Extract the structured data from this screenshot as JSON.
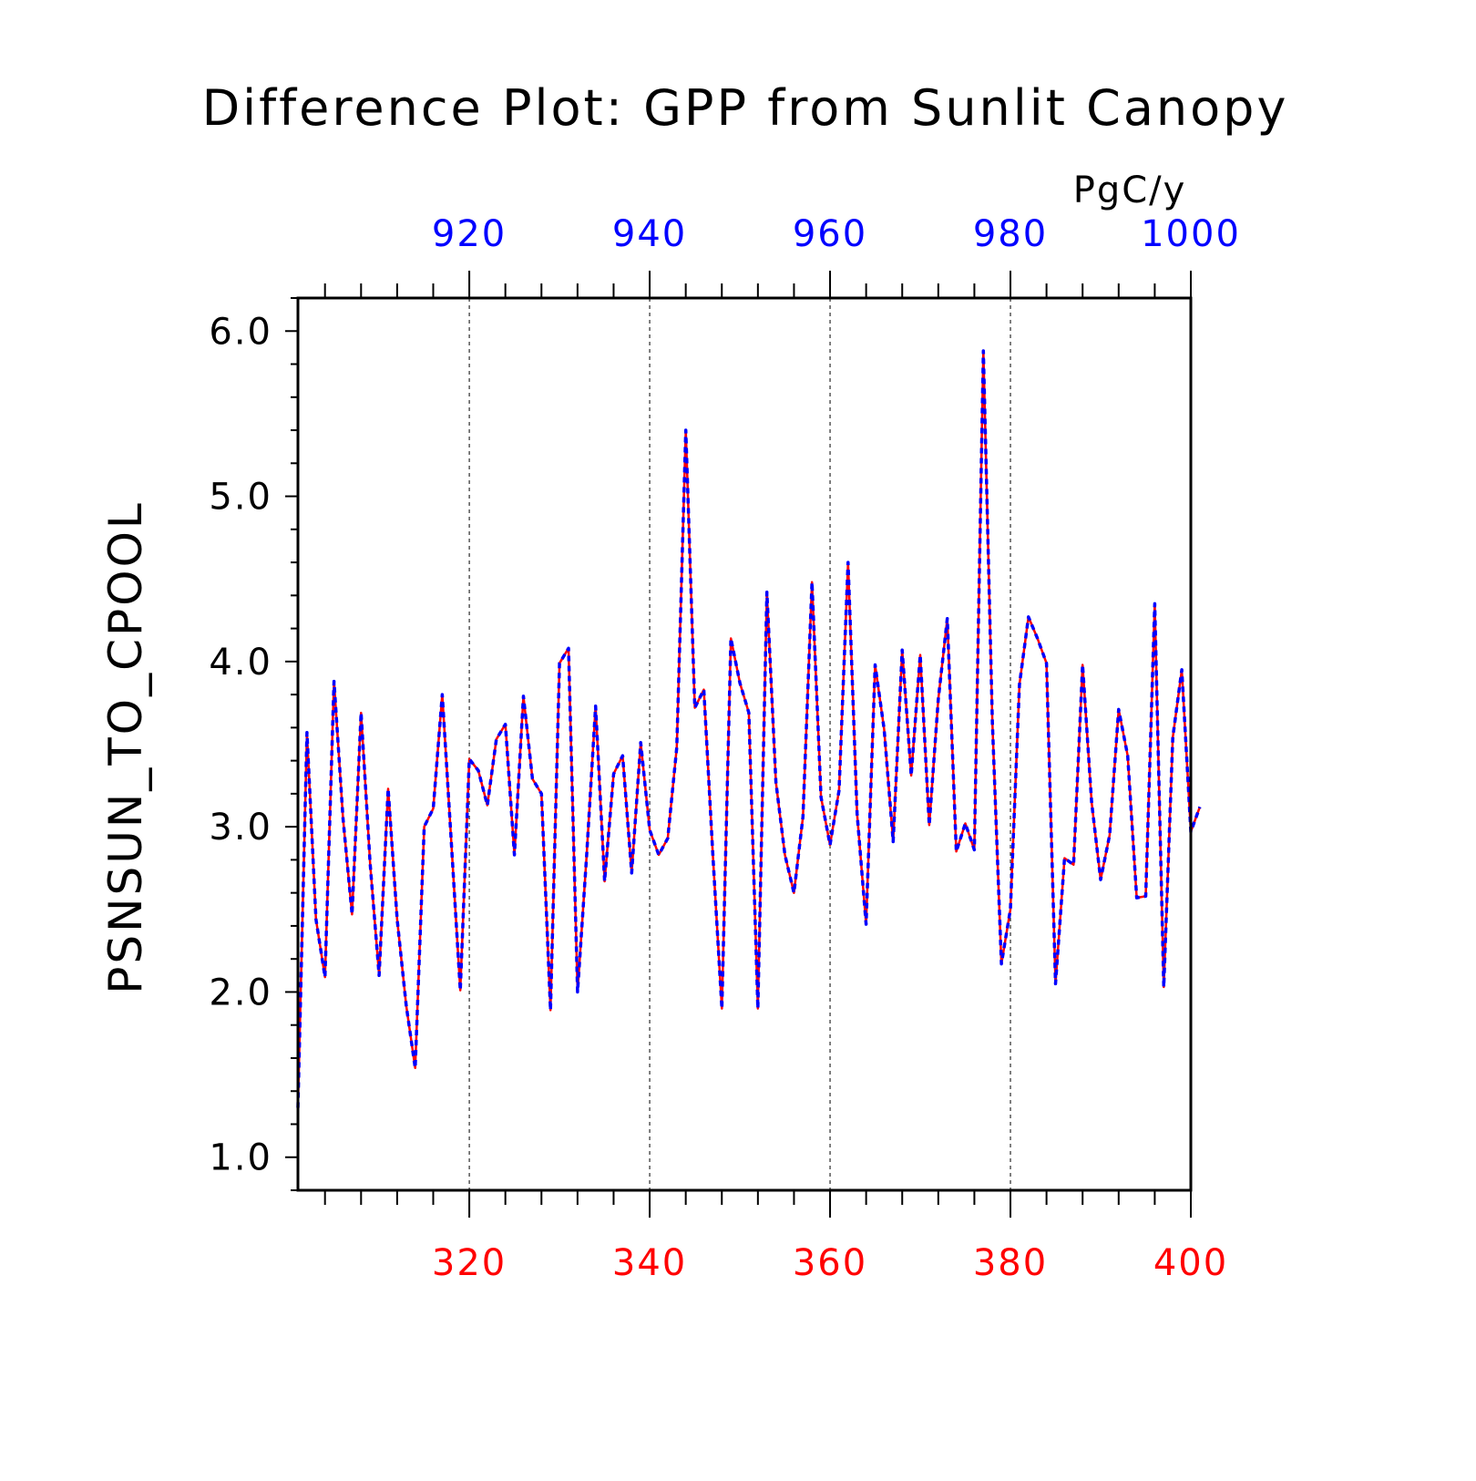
{
  "chart_data": {
    "type": "line",
    "title": "Difference Plot: GPP from Sunlit Canopy",
    "ylabel": "PSNSUN_TO_CPOOL",
    "units": "PgC/y",
    "ylim": [
      0.8,
      6.2
    ],
    "yticks": [
      1.0,
      2.0,
      3.0,
      4.0,
      5.0,
      6.0
    ],
    "ytick_labels": [
      "1.0",
      "2.0",
      "3.0",
      "4.0",
      "5.0",
      "6.0"
    ],
    "x_bottom": {
      "range": [
        301,
        400
      ],
      "ticks": [
        320,
        340,
        360,
        380,
        400
      ],
      "tick_labels": [
        "320",
        "340",
        "360",
        "380",
        "400"
      ],
      "color": "#ff0000"
    },
    "x_top": {
      "range": [
        901,
        1000
      ],
      "ticks": [
        920,
        940,
        960,
        980,
        1000
      ],
      "tick_labels": [
        "920",
        "940",
        "960",
        "980",
        "1000"
      ],
      "color": "#0000ff"
    },
    "grid": "vertical dashed at major ticks",
    "series": [
      {
        "color": "#ff0000",
        "style": "solid",
        "axis": "bottom",
        "x_start": 301,
        "values": [
          1.3,
          3.57,
          2.44,
          2.09,
          3.88,
          3.05,
          2.47,
          3.69,
          2.78,
          2.1,
          3.23,
          2.44,
          1.92,
          1.54,
          3.0,
          3.11,
          3.8,
          2.91,
          2.01,
          3.41,
          3.34,
          3.13,
          3.53,
          3.62,
          2.83,
          3.79,
          3.29,
          3.2,
          1.89,
          3.99,
          4.08,
          2.0,
          2.82,
          3.73,
          2.67,
          3.32,
          3.43,
          2.72,
          3.51,
          2.98,
          2.83,
          2.93,
          3.48,
          5.4,
          3.72,
          3.83,
          2.83,
          1.9,
          4.14,
          3.87,
          3.69,
          1.9,
          4.42,
          3.27,
          2.83,
          2.6,
          3.06,
          4.48,
          3.18,
          2.89,
          3.22,
          4.6,
          3.08,
          2.41,
          3.98,
          3.59,
          2.91,
          4.07,
          3.31,
          4.04,
          3.01,
          3.77,
          4.26,
          2.85,
          3.02,
          2.86,
          5.88,
          3.63,
          2.17,
          2.5,
          3.86,
          4.27,
          4.14,
          3.99,
          2.05,
          2.81,
          2.77,
          3.98,
          3.15,
          2.68,
          2.95,
          3.71,
          3.43,
          2.57,
          2.58,
          4.35,
          2.03,
          3.54,
          3.95,
          2.97,
          3.12
        ]
      },
      {
        "color": "#0000ff",
        "style": "dashed",
        "axis": "top",
        "x_start": 901,
        "values": [
          1.3,
          3.57,
          2.44,
          2.09,
          3.88,
          3.05,
          2.47,
          3.69,
          2.78,
          2.1,
          3.23,
          2.44,
          1.92,
          1.54,
          3.0,
          3.11,
          3.8,
          2.91,
          2.01,
          3.41,
          3.34,
          3.13,
          3.53,
          3.62,
          2.83,
          3.79,
          3.29,
          3.2,
          1.89,
          3.99,
          4.08,
          2.0,
          2.82,
          3.73,
          2.67,
          3.32,
          3.43,
          2.72,
          3.51,
          2.98,
          2.83,
          2.93,
          3.48,
          5.4,
          3.72,
          3.83,
          2.83,
          1.9,
          4.14,
          3.87,
          3.69,
          1.9,
          4.42,
          3.27,
          2.83,
          2.6,
          3.06,
          4.48,
          3.18,
          2.89,
          3.22,
          4.6,
          3.08,
          2.41,
          3.98,
          3.59,
          2.91,
          4.07,
          3.31,
          4.04,
          3.01,
          3.77,
          4.26,
          2.85,
          3.02,
          2.86,
          5.88,
          3.63,
          2.17,
          2.5,
          3.86,
          4.27,
          4.14,
          3.99,
          2.05,
          2.81,
          2.77,
          3.98,
          3.15,
          2.68,
          2.95,
          3.71,
          3.43,
          2.57,
          2.58,
          4.35,
          2.03,
          3.54,
          3.95,
          2.97,
          3.12
        ]
      }
    ]
  }
}
